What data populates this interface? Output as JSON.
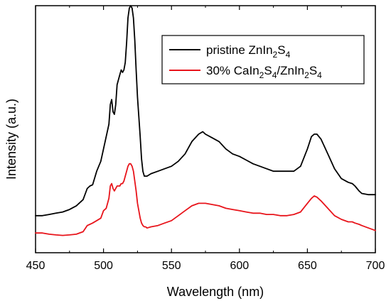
{
  "chart_data": {
    "type": "line",
    "xlabel": "Wavelength (nm)",
    "ylabel": "Intensity (a.u.)",
    "xlim": [
      450,
      700
    ],
    "ylim": [
      0,
      1
    ],
    "xticks": [
      450,
      500,
      550,
      600,
      650,
      700
    ],
    "grid": false,
    "legend_position": "top-right",
    "series": [
      {
        "name": "pristine ZnIn2S4",
        "legend_parts": [
          {
            "t": "pristine ZnIn",
            "s": "n"
          },
          {
            "t": "2",
            "s": "sub"
          },
          {
            "t": "S",
            "s": "n"
          },
          {
            "t": "4",
            "s": "sub"
          }
        ],
        "color": "#000000",
        "x": [
          450,
          455,
          460,
          465,
          470,
          475,
          480,
          485,
          488,
          490,
          492,
          495,
          498,
          500,
          502,
          504,
          505,
          506,
          507,
          508,
          509,
          510,
          511,
          512,
          513,
          514,
          515,
          516,
          517,
          518,
          519,
          520,
          521,
          522,
          523,
          524,
          525,
          526,
          527,
          528,
          529,
          530,
          531,
          532,
          535,
          540,
          545,
          550,
          555,
          560,
          565,
          570,
          573,
          575,
          580,
          585,
          590,
          595,
          600,
          605,
          610,
          615,
          620,
          625,
          630,
          635,
          640,
          645,
          650,
          653,
          655,
          657,
          660,
          665,
          670,
          675,
          680,
          683,
          685,
          688,
          690,
          695,
          700
        ],
        "y": [
          0.15,
          0.15,
          0.155,
          0.16,
          0.165,
          0.175,
          0.19,
          0.215,
          0.26,
          0.27,
          0.275,
          0.33,
          0.37,
          0.42,
          0.47,
          0.52,
          0.6,
          0.62,
          0.57,
          0.56,
          0.6,
          0.68,
          0.7,
          0.72,
          0.74,
          0.73,
          0.74,
          0.77,
          0.85,
          0.95,
          0.99,
          1.0,
          0.99,
          0.95,
          0.86,
          0.74,
          0.63,
          0.55,
          0.47,
          0.38,
          0.33,
          0.31,
          0.31,
          0.31,
          0.32,
          0.33,
          0.34,
          0.35,
          0.37,
          0.4,
          0.45,
          0.48,
          0.49,
          0.48,
          0.465,
          0.45,
          0.42,
          0.4,
          0.39,
          0.375,
          0.36,
          0.35,
          0.34,
          0.33,
          0.33,
          0.33,
          0.33,
          0.35,
          0.42,
          0.47,
          0.48,
          0.48,
          0.46,
          0.4,
          0.34,
          0.3,
          0.285,
          0.28,
          0.27,
          0.25,
          0.24,
          0.235,
          0.235
        ]
      },
      {
        "name": "30% CaIn2S4/ZnIn2S4",
        "legend_parts": [
          {
            "t": "30% CaIn",
            "s": "n"
          },
          {
            "t": "2",
            "s": "sub"
          },
          {
            "t": "S",
            "s": "n"
          },
          {
            "t": "4",
            "s": "sub"
          },
          {
            "t": "/ZnIn",
            "s": "n"
          },
          {
            "t": "2",
            "s": "sub"
          },
          {
            "t": "S",
            "s": "n"
          },
          {
            "t": "4",
            "s": "sub"
          }
        ],
        "color": "#e8141b",
        "x": [
          450,
          455,
          460,
          465,
          470,
          475,
          480,
          485,
          488,
          490,
          492,
          495,
          498,
          500,
          502,
          504,
          505,
          506,
          507,
          508,
          509,
          510,
          511,
          512,
          513,
          514,
          515,
          516,
          517,
          518,
          519,
          520,
          521,
          522,
          523,
          524,
          525,
          526,
          527,
          528,
          529,
          530,
          531,
          532,
          535,
          540,
          545,
          550,
          555,
          560,
          565,
          570,
          573,
          575,
          580,
          585,
          590,
          595,
          600,
          605,
          610,
          615,
          620,
          625,
          630,
          635,
          640,
          645,
          650,
          653,
          655,
          657,
          660,
          665,
          670,
          675,
          680,
          683,
          685,
          688,
          690,
          695,
          700
        ],
        "y": [
          0.08,
          0.08,
          0.075,
          0.072,
          0.07,
          0.072,
          0.075,
          0.085,
          0.11,
          0.115,
          0.12,
          0.13,
          0.14,
          0.17,
          0.18,
          0.22,
          0.27,
          0.28,
          0.26,
          0.25,
          0.26,
          0.27,
          0.27,
          0.27,
          0.28,
          0.28,
          0.29,
          0.31,
          0.33,
          0.35,
          0.36,
          0.36,
          0.35,
          0.33,
          0.29,
          0.25,
          0.2,
          0.17,
          0.14,
          0.12,
          0.11,
          0.105,
          0.105,
          0.1,
          0.105,
          0.11,
          0.12,
          0.13,
          0.15,
          0.17,
          0.19,
          0.2,
          0.2,
          0.2,
          0.195,
          0.19,
          0.18,
          0.175,
          0.17,
          0.165,
          0.16,
          0.16,
          0.155,
          0.155,
          0.15,
          0.15,
          0.155,
          0.165,
          0.2,
          0.22,
          0.23,
          0.225,
          0.21,
          0.18,
          0.15,
          0.135,
          0.125,
          0.125,
          0.12,
          0.115,
          0.11,
          0.1,
          0.09
        ]
      }
    ]
  }
}
